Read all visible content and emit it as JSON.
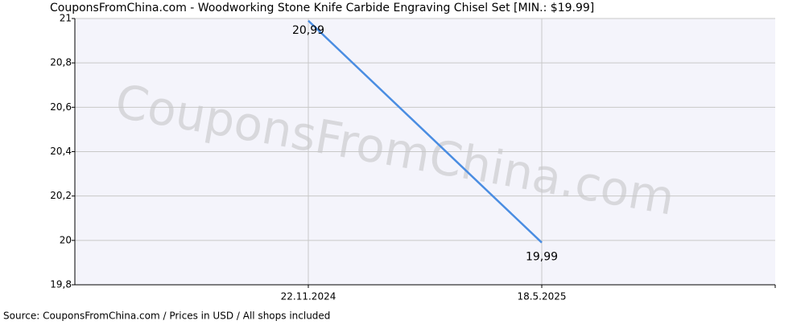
{
  "chart_data": {
    "type": "line",
    "title": "CouponsFromChina.com - Woodworking Stone Knife Carbide Engraving Chisel Set [MIN.: $19.99]",
    "watermark": "CouponsFromChina.com",
    "source": "Source: CouponsFromChina.com / Prices in USD / All shops included",
    "categories": [
      "22.11.2024",
      "18.5.2025"
    ],
    "series": [
      {
        "name": "Price",
        "color": "#4a8de2",
        "values": [
          20.99,
          19.99
        ],
        "value_labels": [
          "20,99",
          "19,99"
        ]
      }
    ],
    "ylim": [
      19.8,
      21
    ],
    "yticks": [
      {
        "value": 19.8,
        "label": "19,8"
      },
      20,
      {
        "value": 20.2,
        "label": "20,2"
      },
      {
        "value": 20.4,
        "label": "20,4"
      },
      {
        "value": 20.6,
        "label": "20,6"
      },
      {
        "value": 20.8,
        "label": "20,8"
      },
      21
    ],
    "grid": true
  }
}
